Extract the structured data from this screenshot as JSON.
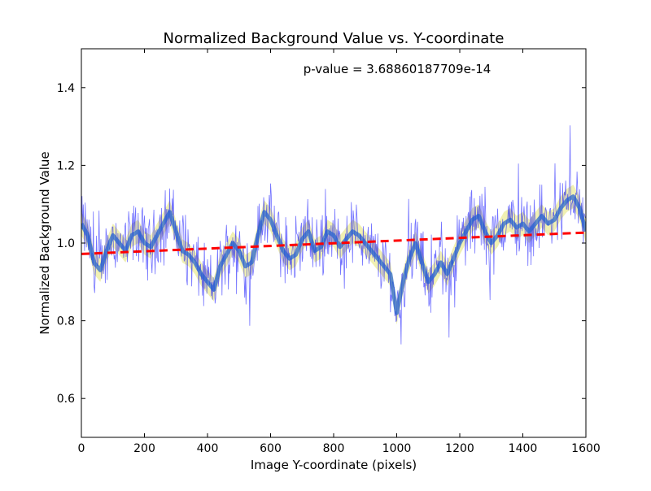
{
  "chart_data": {
    "type": "line",
    "title": "Normalized Background Value vs. Y-coordinate",
    "xlabel": "Image Y-coordinate (pixels)",
    "ylabel": "Normalized Background Value",
    "annotation": "p-value = 3.68860187709e-14",
    "xlim": [
      0,
      1600
    ],
    "ylim": [
      0.5,
      1.5
    ],
    "xticks": [
      0,
      200,
      400,
      600,
      800,
      1000,
      1200,
      1400,
      1600
    ],
    "xtick_labels": [
      "0",
      "200",
      "400",
      "600",
      "800",
      "1000",
      "1200",
      "1400",
      "1600"
    ],
    "yticks": [
      0.6,
      0.8,
      1.0,
      1.2,
      1.4
    ],
    "ytick_labels": [
      "0.6",
      "0.8",
      "1.0",
      "1.2",
      "1.4"
    ],
    "grid": false,
    "colors": {
      "raw": "#0000ff",
      "smoothed": "#1f5fd0",
      "band": "#cccc00",
      "fit": "#ff0000"
    },
    "series": [
      {
        "style": "smoothed-with-band",
        "x": [
          0,
          20,
          40,
          60,
          80,
          100,
          120,
          140,
          160,
          180,
          200,
          220,
          240,
          260,
          280,
          300,
          320,
          340,
          360,
          380,
          400,
          420,
          440,
          460,
          480,
          500,
          520,
          540,
          560,
          580,
          600,
          620,
          640,
          660,
          680,
          700,
          720,
          740,
          760,
          780,
          800,
          820,
          840,
          860,
          880,
          900,
          920,
          940,
          960,
          980,
          1000,
          1020,
          1040,
          1060,
          1080,
          1100,
          1120,
          1140,
          1160,
          1180,
          1200,
          1220,
          1240,
          1260,
          1280,
          1300,
          1320,
          1340,
          1360,
          1380,
          1400,
          1420,
          1440,
          1460,
          1480,
          1500,
          1520,
          1540,
          1560,
          1580,
          1600
        ],
        "y": [
          1.05,
          1.02,
          0.95,
          0.93,
          0.98,
          1.02,
          1.0,
          0.98,
          1.02,
          1.03,
          1.0,
          0.99,
          1.02,
          1.05,
          1.08,
          1.03,
          0.98,
          0.97,
          0.95,
          0.92,
          0.9,
          0.88,
          0.94,
          0.97,
          1.0,
          0.98,
          0.94,
          0.95,
          1.02,
          1.08,
          1.06,
          1.02,
          0.98,
          0.96,
          0.97,
          1.01,
          1.03,
          0.98,
          0.99,
          1.03,
          1.02,
          0.99,
          1.01,
          1.03,
          1.02,
          1.0,
          0.98,
          0.96,
          0.94,
          0.92,
          0.82,
          0.9,
          0.96,
          1.0,
          0.95,
          0.9,
          0.92,
          0.95,
          0.92,
          0.96,
          1.0,
          1.03,
          1.06,
          1.07,
          1.03,
          1.0,
          1.02,
          1.05,
          1.06,
          1.04,
          1.05,
          1.03,
          1.05,
          1.07,
          1.05,
          1.06,
          1.09,
          1.11,
          1.12,
          1.09,
          1.03
        ]
      },
      {
        "style": "fit",
        "x": [
          0,
          1600
        ],
        "y": [
          0.972,
          1.027
        ]
      }
    ]
  }
}
